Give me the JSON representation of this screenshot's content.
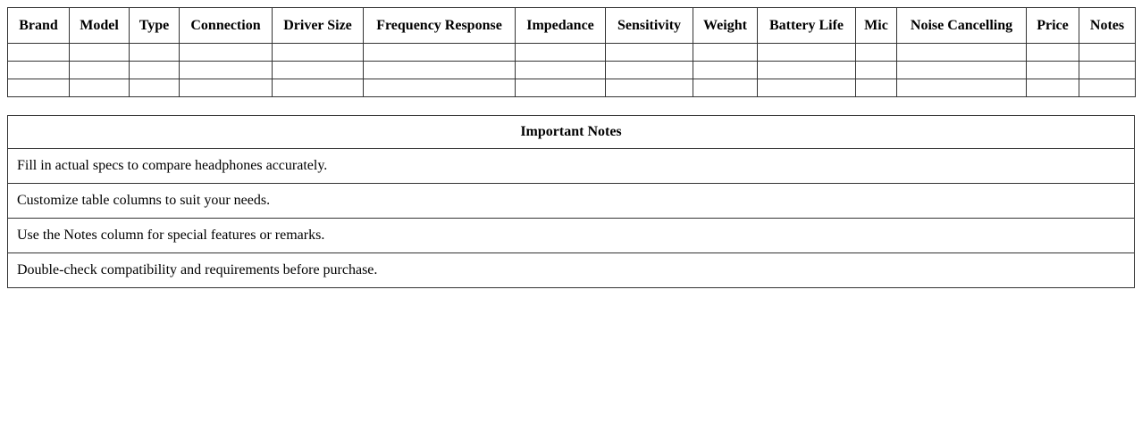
{
  "page": {
    "background_color": "#ffffff",
    "border_color": "#333333",
    "text_color": "#000000"
  },
  "spec_table": {
    "columns": [
      "Brand",
      "Model",
      "Type",
      "Connection",
      "Driver Size",
      "Frequency Response",
      "Impedance",
      "Sensitivity",
      "Weight",
      "Battery Life",
      "Mic",
      "Noise Cancelling",
      "Price",
      "Notes"
    ],
    "empty_row_count": 3
  },
  "notes_table": {
    "title": "Important Notes",
    "notes": [
      "Fill in actual specs to compare headphones accurately.",
      "Customize table columns to suit your needs.",
      "Use the Notes column for special features or remarks.",
      "Double-check compatibility and requirements before purchase."
    ]
  }
}
